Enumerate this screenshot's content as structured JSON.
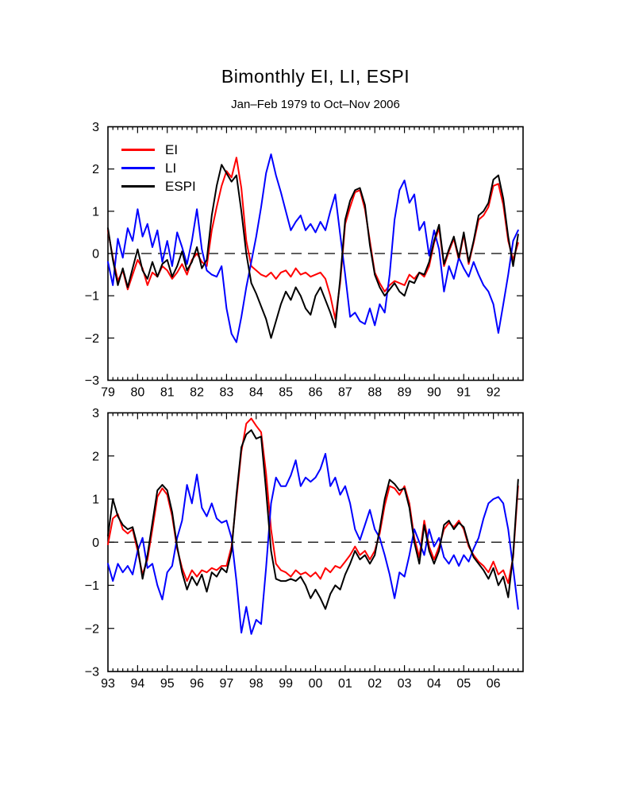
{
  "chart": {
    "title": "Bimonthly EI, LI, ESPI",
    "subtitle": "Jan–Feb 1979 to Oct–Nov 2006"
  },
  "chart_data": {
    "type": "line",
    "title": "Bimonthly EI, LI, ESPI",
    "subtitle": "Jan–Feb 1979 to Oct–Nov 2006",
    "xlabel": "",
    "ylabel": "",
    "grid": false,
    "zero_line_style": "dashed",
    "frame_color": "#000000",
    "legend": {
      "position": "top-left-inside",
      "entries": [
        {
          "label": "EI",
          "color": "#ff0000"
        },
        {
          "label": "LI",
          "color": "#0000ff"
        },
        {
          "label": "ESPI",
          "color": "#000000"
        }
      ]
    },
    "panels": [
      {
        "x_start_year": 1979,
        "x_step_years": 0.16667,
        "points_per_year": 6,
        "x_tick_labels": [
          "79",
          "80",
          "81",
          "82",
          "83",
          "84",
          "85",
          "86",
          "87",
          "88",
          "89",
          "90",
          "91",
          "92"
        ],
        "ylim": [
          -3,
          3
        ],
        "y_tick_labels": [
          "3",
          "2",
          "1",
          "0",
          "−1",
          "−2",
          "−3"
        ],
        "series": [
          {
            "name": "EI",
            "color": "#ff0000",
            "values": [
              0.55,
              -0.1,
              -0.65,
              -0.4,
              -0.85,
              -0.5,
              -0.15,
              -0.35,
              -0.75,
              -0.45,
              -0.55,
              -0.3,
              -0.4,
              -0.6,
              -0.45,
              -0.25,
              -0.5,
              -0.15,
              0,
              -0.2,
              -0.3,
              0.55,
              1.1,
              1.6,
              1.95,
              1.8,
              2.27,
              1.55,
              0.3,
              -0.3,
              -0.4,
              -0.5,
              -0.55,
              -0.45,
              -0.6,
              -0.45,
              -0.4,
              -0.55,
              -0.35,
              -0.5,
              -0.45,
              -0.55,
              -0.5,
              -0.45,
              -0.6,
              -1.0,
              -1.55,
              -0.7,
              0.7,
              1.1,
              1.45,
              1.5,
              1.05,
              0.3,
              -0.45,
              -0.7,
              -0.9,
              -0.75,
              -0.65,
              -0.7,
              -0.75,
              -0.5,
              -0.6,
              -0.45,
              -0.55,
              -0.3,
              0.25,
              0.6,
              -0.3,
              0.05,
              0.35,
              -0.15,
              0.45,
              -0.25,
              0.25,
              0.8,
              0.9,
              1.1,
              1.6,
              1.65,
              1.15,
              0.3,
              -0.15,
              0.25
            ]
          },
          {
            "name": "LI",
            "color": "#0000ff",
            "values": [
              -0.2,
              -0.75,
              0.35,
              -0.1,
              0.6,
              0.3,
              1.05,
              0.4,
              0.7,
              0.15,
              0.55,
              -0.2,
              0.3,
              -0.3,
              0.5,
              0.15,
              -0.25,
              0.3,
              1.05,
              0.1,
              -0.4,
              -0.5,
              -0.55,
              -0.3,
              -1.3,
              -1.9,
              -2.1,
              -1.5,
              -0.8,
              -0.2,
              0.4,
              1.1,
              1.9,
              2.35,
              1.85,
              1.45,
              1.0,
              0.55,
              0.75,
              0.9,
              0.55,
              0.7,
              0.5,
              0.75,
              0.55,
              1.0,
              1.4,
              0.45,
              -0.5,
              -1.5,
              -1.4,
              -1.6,
              -1.67,
              -1.3,
              -1.7,
              -1.2,
              -1.4,
              -0.5,
              0.8,
              1.5,
              1.73,
              1.2,
              1.4,
              0.55,
              0.75,
              -0.05,
              0.55,
              0.1,
              -0.9,
              -0.3,
              -0.6,
              -0.1,
              -0.35,
              -0.55,
              -0.2,
              -0.5,
              -0.75,
              -0.9,
              -1.2,
              -1.88,
              -1.2,
              -0.5,
              0.3,
              0.55
            ]
          },
          {
            "name": "ESPI",
            "color": "#000000",
            "values": [
              0.6,
              -0.15,
              -0.75,
              -0.35,
              -0.8,
              -0.35,
              0.1,
              -0.4,
              -0.6,
              -0.2,
              -0.55,
              -0.25,
              -0.15,
              -0.55,
              -0.3,
              0.05,
              -0.4,
              -0.2,
              0.15,
              -0.35,
              -0.15,
              0.9,
              1.6,
              2.1,
              1.9,
              1.7,
              1.85,
              1.0,
              0.0,
              -0.7,
              -0.95,
              -1.25,
              -1.55,
              -2.0,
              -1.6,
              -1.2,
              -0.9,
              -1.1,
              -0.8,
              -1.0,
              -1.3,
              -1.45,
              -1.0,
              -0.8,
              -1.1,
              -1.4,
              -1.75,
              -0.6,
              0.8,
              1.25,
              1.5,
              1.55,
              1.15,
              0.2,
              -0.5,
              -0.8,
              -1.0,
              -0.85,
              -0.7,
              -0.9,
              -1.0,
              -0.65,
              -0.7,
              -0.45,
              -0.5,
              -0.2,
              0.3,
              0.68,
              -0.25,
              0.1,
              0.4,
              -0.1,
              0.5,
              -0.2,
              0.3,
              0.9,
              1.0,
              1.2,
              1.75,
              1.85,
              1.3,
              0.4,
              -0.3,
              0.45
            ]
          }
        ]
      },
      {
        "x_start_year": 1993,
        "x_step_years": 0.16667,
        "points_per_year": 6,
        "x_tick_labels": [
          "93",
          "94",
          "95",
          "96",
          "97",
          "98",
          "99",
          "00",
          "01",
          "02",
          "03",
          "04",
          "05",
          "06"
        ],
        "ylim": [
          -3,
          3
        ],
        "y_tick_labels": [
          "3",
          "2",
          "1",
          "0",
          "−1",
          "−2",
          "−3"
        ],
        "series": [
          {
            "name": "EI",
            "color": "#ff0000",
            "values": [
              -0.05,
              0.55,
              0.65,
              0.3,
              0.2,
              0.3,
              -0.2,
              -0.75,
              -0.4,
              0.3,
              1.05,
              1.25,
              1.1,
              0.6,
              -0.15,
              -0.6,
              -0.9,
              -0.65,
              -0.8,
              -0.65,
              -0.7,
              -0.6,
              -0.65,
              -0.55,
              -0.55,
              -0.1,
              1.0,
              2.1,
              2.75,
              2.87,
              2.7,
              2.55,
              1.6,
              0.3,
              -0.5,
              -0.65,
              -0.7,
              -0.8,
              -0.65,
              -0.75,
              -0.7,
              -0.8,
              -0.7,
              -0.85,
              -0.6,
              -0.7,
              -0.55,
              -0.6,
              -0.45,
              -0.3,
              -0.1,
              -0.3,
              -0.2,
              -0.4,
              -0.2,
              0.2,
              0.85,
              1.3,
              1.25,
              1.1,
              1.3,
              0.9,
              0.1,
              -0.35,
              0.5,
              -0.1,
              -0.4,
              -0.1,
              0.3,
              0.45,
              0.35,
              0.5,
              0.3,
              -0.1,
              -0.3,
              -0.45,
              -0.55,
              -0.7,
              -0.45,
              -0.75,
              -0.65,
              -0.95,
              -0.35,
              1.3
            ]
          },
          {
            "name": "LI",
            "color": "#0000ff",
            "values": [
              -0.5,
              -0.9,
              -0.5,
              -0.7,
              -0.55,
              -0.75,
              -0.2,
              0.1,
              -0.6,
              -0.5,
              -1.0,
              -1.33,
              -0.7,
              -0.55,
              0.1,
              0.5,
              1.33,
              0.9,
              1.57,
              0.8,
              0.6,
              0.9,
              0.55,
              0.45,
              0.5,
              0.1,
              -0.9,
              -2.1,
              -1.5,
              -2.13,
              -1.8,
              -1.9,
              -0.6,
              0.9,
              1.5,
              1.3,
              1.3,
              1.55,
              1.9,
              1.3,
              1.5,
              1.4,
              1.5,
              1.7,
              2.05,
              1.3,
              1.5,
              1.1,
              1.3,
              0.9,
              0.3,
              0.05,
              0.4,
              0.75,
              0.3,
              0.1,
              -0.3,
              -0.75,
              -1.3,
              -0.7,
              -0.8,
              -0.3,
              0.3,
              0.0,
              -0.3,
              0.3,
              -0.1,
              0.1,
              -0.35,
              -0.5,
              -0.3,
              -0.55,
              -0.3,
              -0.45,
              -0.15,
              0.1,
              0.55,
              0.9,
              1.0,
              1.05,
              0.9,
              0.3,
              -0.6,
              -1.55
            ]
          },
          {
            "name": "ESPI",
            "color": "#000000",
            "values": [
              0.15,
              1.0,
              0.6,
              0.4,
              0.3,
              0.35,
              -0.1,
              -0.85,
              -0.3,
              0.45,
              1.2,
              1.33,
              1.2,
              0.7,
              -0.1,
              -0.7,
              -1.1,
              -0.8,
              -1.0,
              -0.75,
              -1.15,
              -0.7,
              -0.8,
              -0.6,
              -0.7,
              -0.2,
              1.1,
              2.2,
              2.5,
              2.6,
              2.4,
              2.45,
              1.2,
              -0.2,
              -0.85,
              -0.9,
              -0.9,
              -0.85,
              -0.9,
              -0.8,
              -1.0,
              -1.3,
              -1.1,
              -1.3,
              -1.55,
              -1.2,
              -1.0,
              -1.1,
              -0.75,
              -0.5,
              -0.2,
              -0.4,
              -0.3,
              -0.5,
              -0.3,
              0.3,
              1.0,
              1.45,
              1.35,
              1.2,
              1.25,
              0.8,
              0.0,
              -0.5,
              0.4,
              -0.2,
              -0.5,
              -0.2,
              0.4,
              0.5,
              0.3,
              0.45,
              0.35,
              -0.05,
              -0.35,
              -0.5,
              -0.65,
              -0.85,
              -0.6,
              -1.0,
              -0.8,
              -1.28,
              -0.3,
              1.45
            ]
          }
        ]
      }
    ]
  }
}
